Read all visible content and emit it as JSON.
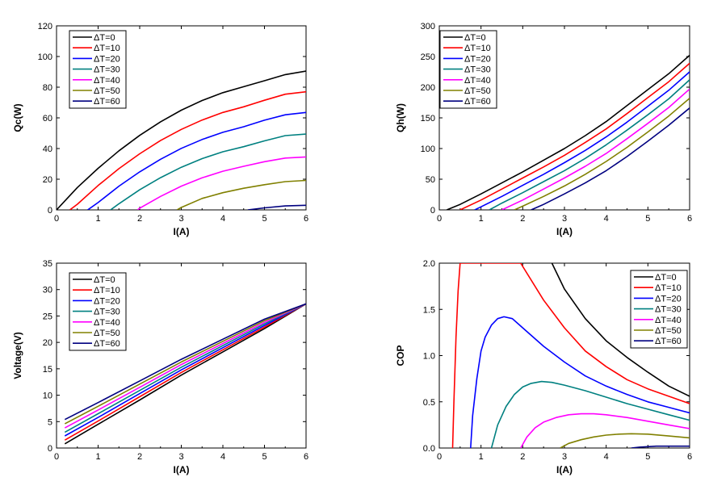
{
  "figure": {
    "legend_labels": [
      "ΔT=0",
      "ΔT=10",
      "ΔT=20",
      "ΔT=30",
      "ΔT=40",
      "ΔT=50",
      "ΔT=60"
    ],
    "series_colors": [
      "#000000",
      "#ff0000",
      "#0000ff",
      "#008080",
      "#ff00ff",
      "#808000",
      "#000080"
    ]
  },
  "chart_data": [
    {
      "type": "line",
      "title": "",
      "xlabel": "I(A)",
      "ylabel": "Qc(W)",
      "xlim": [
        0,
        6
      ],
      "ylim": [
        0,
        120
      ],
      "xticks": [
        0,
        1,
        2,
        3,
        4,
        5,
        6
      ],
      "yticks": [
        0,
        20,
        40,
        60,
        80,
        100,
        120
      ],
      "legend_position": "top-left",
      "grid": false,
      "series": [
        {
          "name": "ΔT=0",
          "x": [
            0,
            0.5,
            1,
            1.5,
            2,
            2.5,
            3,
            3.5,
            4,
            4.5,
            5,
            5.5,
            6
          ],
          "y": [
            0,
            14.6,
            27.1,
            38.5,
            48.6,
            57.4,
            65,
            71.3,
            76.4,
            80.3,
            84.2,
            88.2,
            90.5
          ]
        },
        {
          "name": "ΔT=10",
          "x": [
            0.32,
            0.5,
            1,
            1.5,
            2,
            2.5,
            3,
            3.5,
            4,
            4.5,
            5,
            5.5,
            6
          ],
          "y": [
            0,
            3.7,
            15.9,
            26.9,
            36.6,
            45.2,
            52.5,
            58.6,
            63.5,
            67.2,
            71.5,
            75.4,
            77
          ]
        },
        {
          "name": "ΔT=20",
          "x": [
            0.75,
            1,
            1.5,
            2,
            2.5,
            3,
            3.5,
            4,
            4.5,
            5,
            5.5,
            6
          ],
          "y": [
            0,
            4.8,
            15.5,
            24.8,
            33,
            40.1,
            45.9,
            50.6,
            54.2,
            58.5,
            62,
            63.5
          ]
        },
        {
          "name": "ΔT=30",
          "x": [
            1.3,
            1.5,
            2,
            2.5,
            3,
            3.5,
            4,
            4.5,
            5,
            5.5,
            6
          ],
          "y": [
            0,
            4,
            13.1,
            21,
            27.8,
            33.4,
            37.9,
            41.2,
            45,
            48.4,
            49.4
          ]
        },
        {
          "name": "ΔT=40",
          "x": [
            1.95,
            2,
            2.5,
            3,
            3.5,
            4,
            4.5,
            5,
            5.5,
            6
          ],
          "y": [
            0,
            1.1,
            8.8,
            15.5,
            20.9,
            25.2,
            28.4,
            31.4,
            33.8,
            34.5
          ]
        },
        {
          "name": "ΔT=50",
          "x": [
            2.9,
            3,
            3.5,
            4,
            4.5,
            5,
            5.5,
            6
          ],
          "y": [
            0,
            1.6,
            7.5,
            11.2,
            14.1,
            16.4,
            18.4,
            19.2
          ]
        },
        {
          "name": "ΔT=60",
          "x": [
            4.6,
            5,
            5.5,
            6
          ],
          "y": [
            0,
            1.3,
            2.6,
            3
          ]
        }
      ]
    },
    {
      "type": "line",
      "title": "",
      "xlabel": "I(A)",
      "ylabel": "Qh(W)",
      "xlim": [
        0,
        6
      ],
      "ylim": [
        0,
        300
      ],
      "xticks": [
        0,
        1,
        2,
        3,
        4,
        5,
        6
      ],
      "yticks": [
        0,
        50,
        100,
        150,
        200,
        250,
        300
      ],
      "legend_position": "top-left",
      "grid": false,
      "series": [
        {
          "name": "ΔT=0",
          "x": [
            0.18,
            0.5,
            1,
            1.5,
            2,
            2.5,
            3,
            3.5,
            4,
            4.5,
            5,
            5.5,
            6
          ],
          "y": [
            0,
            9,
            26,
            44,
            62,
            81,
            100,
            121,
            144,
            170,
            196,
            222,
            252
          ]
        },
        {
          "name": "ΔT=10",
          "x": [
            0.5,
            1,
            1.5,
            2,
            2.5,
            3,
            3.5,
            4,
            4.5,
            5,
            5.5,
            6
          ],
          "y": [
            0,
            16,
            34,
            52,
            70,
            89,
            110,
            132,
            157,
            183,
            209,
            239
          ]
        },
        {
          "name": "ΔT=20",
          "x": [
            0.85,
            1,
            1.5,
            2,
            2.5,
            3,
            3.5,
            4,
            4.5,
            5,
            5.5,
            6
          ],
          "y": [
            0,
            5,
            22,
            40,
            58,
            77,
            97,
            119,
            143,
            169,
            195,
            225
          ]
        },
        {
          "name": "ΔT=30",
          "x": [
            1.2,
            1.5,
            2,
            2.5,
            3,
            3.5,
            4,
            4.5,
            5,
            5.5,
            6
          ],
          "y": [
            0,
            11,
            28,
            46,
            64,
            84,
            106,
            130,
            155,
            181,
            212
          ]
        },
        {
          "name": "ΔT=40",
          "x": [
            1.5,
            2,
            2.5,
            3,
            3.5,
            4,
            4.5,
            5,
            5.5,
            6
          ],
          "y": [
            0,
            16,
            34,
            52,
            71,
            92,
            116,
            141,
            167,
            197
          ]
        },
        {
          "name": "ΔT=50",
          "x": [
            1.8,
            2,
            2.5,
            3,
            3.5,
            4,
            4.5,
            5,
            5.5,
            6
          ],
          "y": [
            0,
            6,
            22,
            39,
            58,
            79,
            102,
            127,
            153,
            182
          ]
        },
        {
          "name": "ΔT=60",
          "x": [
            2.2,
            2.5,
            3,
            3.5,
            4,
            4.5,
            5,
            5.5,
            6
          ],
          "y": [
            0,
            9,
            26,
            44,
            64,
            87,
            112,
            138,
            166
          ]
        }
      ]
    },
    {
      "type": "line",
      "title": "",
      "xlabel": "I(A)",
      "ylabel": "Voltage(V)",
      "xlim": [
        0,
        6
      ],
      "ylim": [
        0,
        35
      ],
      "xticks": [
        0,
        1,
        2,
        3,
        4,
        5,
        6
      ],
      "yticks": [
        0,
        5,
        10,
        15,
        20,
        25,
        30,
        35
      ],
      "legend_position": "top-left",
      "grid": false,
      "series": [
        {
          "name": "ΔT=0",
          "x": [
            0.2,
            1,
            2,
            3,
            4,
            5,
            6
          ],
          "y": [
            0.8,
            4.5,
            9.1,
            13.8,
            18.2,
            22.6,
            27.3
          ]
        },
        {
          "name": "ΔT=10",
          "x": [
            0.2,
            1,
            2,
            3,
            4,
            5,
            6
          ],
          "y": [
            1.5,
            5.1,
            9.7,
            14.3,
            18.6,
            22.9,
            27.3
          ]
        },
        {
          "name": "ΔT=20",
          "x": [
            0.2,
            1,
            2,
            3,
            4,
            5,
            6
          ],
          "y": [
            2.3,
            5.8,
            10.3,
            14.8,
            19.0,
            23.2,
            27.3
          ]
        },
        {
          "name": "ΔT=30",
          "x": [
            0.2,
            1,
            2,
            3,
            4,
            5,
            6
          ],
          "y": [
            3.0,
            6.5,
            10.9,
            15.3,
            19.4,
            23.5,
            27.3
          ]
        },
        {
          "name": "ΔT=40",
          "x": [
            0.2,
            1,
            2,
            3,
            4,
            5,
            6
          ],
          "y": [
            3.8,
            7.2,
            11.5,
            15.8,
            19.8,
            23.8,
            27.3
          ]
        },
        {
          "name": "ΔT=50",
          "x": [
            0.2,
            1,
            2,
            3,
            4,
            5,
            6
          ],
          "y": [
            4.6,
            7.9,
            12.1,
            16.3,
            20.2,
            24.1,
            27.3
          ]
        },
        {
          "name": "ΔT=60",
          "x": [
            0.2,
            1,
            2,
            3,
            4,
            5,
            6
          ],
          "y": [
            5.4,
            8.6,
            12.7,
            16.8,
            20.6,
            24.4,
            27.3
          ]
        }
      ]
    },
    {
      "type": "line",
      "title": "",
      "xlabel": "I(A)",
      "ylabel": "COP",
      "xlim": [
        0,
        6
      ],
      "ylim": [
        0,
        2.0
      ],
      "xticks": [
        0,
        1,
        2,
        3,
        4,
        5,
        6
      ],
      "yticks": [
        0.0,
        0.5,
        1.0,
        1.5,
        2.0
      ],
      "ytick_labels": [
        "0.0",
        "0.5",
        "1.0",
        "1.5",
        "2.0"
      ],
      "legend_position": "top-right",
      "grid": false,
      "series": [
        {
          "name": "ΔT=0",
          "x": [
            2.7,
            3,
            3.5,
            4,
            4.5,
            5,
            5.5,
            6
          ],
          "y": [
            2.0,
            1.72,
            1.4,
            1.16,
            0.98,
            0.82,
            0.67,
            0.56
          ]
        },
        {
          "name": "ΔT=10",
          "x": [
            0.32,
            0.35,
            0.4,
            0.45,
            0.5,
            0.5,
            1.95,
            2.5,
            3,
            3.5,
            4,
            4.5,
            5,
            5.5,
            6
          ],
          "y": [
            0,
            0.5,
            1.2,
            1.7,
            2.0,
            2.0,
            2.0,
            1.6,
            1.3,
            1.05,
            0.88,
            0.74,
            0.64,
            0.56,
            0.48
          ]
        },
        {
          "name": "ΔT=20",
          "x": [
            0.75,
            0.8,
            0.9,
            1.0,
            1.1,
            1.25,
            1.4,
            1.55,
            1.75,
            2,
            2.5,
            3,
            3.5,
            4,
            4.5,
            5,
            5.5,
            6
          ],
          "y": [
            0,
            0.35,
            0.75,
            1.05,
            1.2,
            1.33,
            1.4,
            1.42,
            1.4,
            1.3,
            1.1,
            0.93,
            0.78,
            0.67,
            0.58,
            0.5,
            0.44,
            0.38
          ]
        },
        {
          "name": "ΔT=30",
          "x": [
            1.25,
            1.4,
            1.6,
            1.8,
            2,
            2.2,
            2.45,
            2.7,
            3,
            3.5,
            4,
            4.5,
            5,
            5.5,
            6
          ],
          "y": [
            0,
            0.25,
            0.45,
            0.58,
            0.66,
            0.7,
            0.72,
            0.71,
            0.68,
            0.62,
            0.55,
            0.48,
            0.42,
            0.36,
            0.3
          ]
        },
        {
          "name": "ΔT=40",
          "x": [
            1.95,
            2.1,
            2.3,
            2.5,
            2.8,
            3.1,
            3.4,
            3.7,
            4,
            4.5,
            5,
            5.5,
            6
          ],
          "y": [
            0,
            0.12,
            0.22,
            0.28,
            0.33,
            0.36,
            0.37,
            0.37,
            0.36,
            0.33,
            0.29,
            0.25,
            0.21
          ]
        },
        {
          "name": "ΔT=50",
          "x": [
            2.9,
            3.1,
            3.4,
            3.7,
            4,
            4.3,
            4.6,
            5,
            5.5,
            6
          ],
          "y": [
            0,
            0.05,
            0.09,
            0.12,
            0.14,
            0.15,
            0.155,
            0.15,
            0.13,
            0.11
          ]
        },
        {
          "name": "ΔT=60",
          "x": [
            4.6,
            4.8,
            5.2,
            5.6,
            6
          ],
          "y": [
            0,
            0.01,
            0.02,
            0.02,
            0.02
          ]
        }
      ]
    }
  ]
}
